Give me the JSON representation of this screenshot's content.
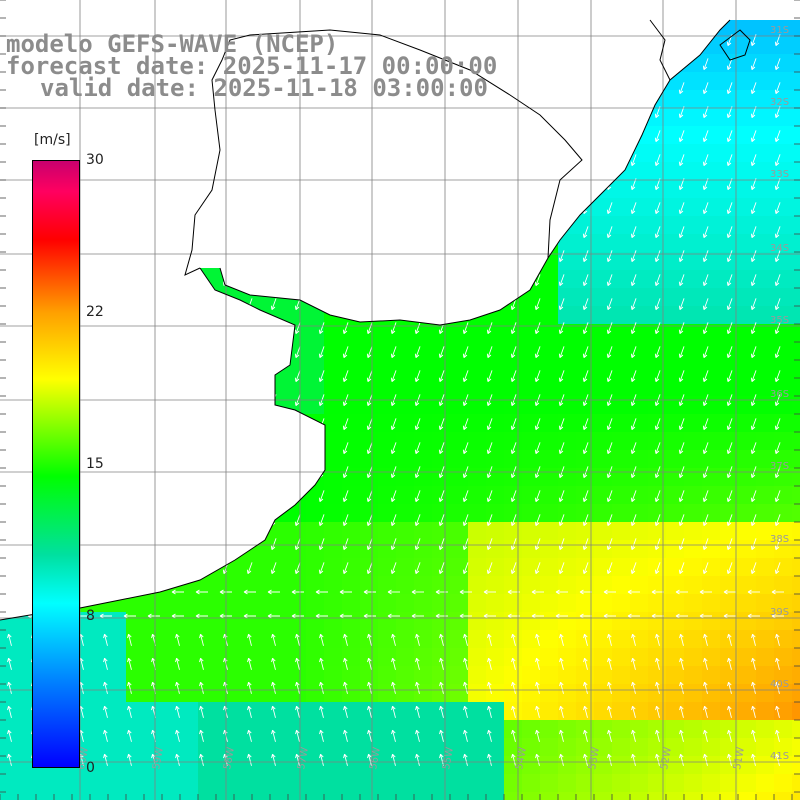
{
  "titles": {
    "line1": "modelo GEFS-WAVE (NCEP)",
    "line2": "forecast date: 2025-11-17 00:00:00",
    "line3": "valid date: 2025-11-18 03:00:00"
  },
  "colorbar": {
    "unit": "[m/s]",
    "ticks": [
      "30",
      "22",
      "15",
      "8",
      "0"
    ],
    "tick_values": [
      30,
      22,
      15,
      8,
      0
    ],
    "min": 0,
    "max": 30,
    "colors": [
      "#0000ff",
      "#0080ff",
      "#00ffff",
      "#00e0a0",
      "#00ff00",
      "#80ff00",
      "#ffff00",
      "#ffa000",
      "#ff0000",
      "#ff0060",
      "#c8006e"
    ]
  },
  "lat_labels": [
    "31S",
    "32S",
    "33S",
    "34S",
    "35S",
    "36S",
    "37S",
    "38S",
    "39S",
    "40S",
    "41S"
  ],
  "lon_labels": [
    "60W",
    "59W",
    "58W",
    "57W",
    "56W",
    "55W",
    "54W",
    "53W",
    "52W",
    "51W"
  ],
  "colors": {
    "land": "#ffffff",
    "coastline": "#000000",
    "grid": "#808080",
    "arrows": "#ffffff",
    "title": "#8c8c8c"
  }
}
